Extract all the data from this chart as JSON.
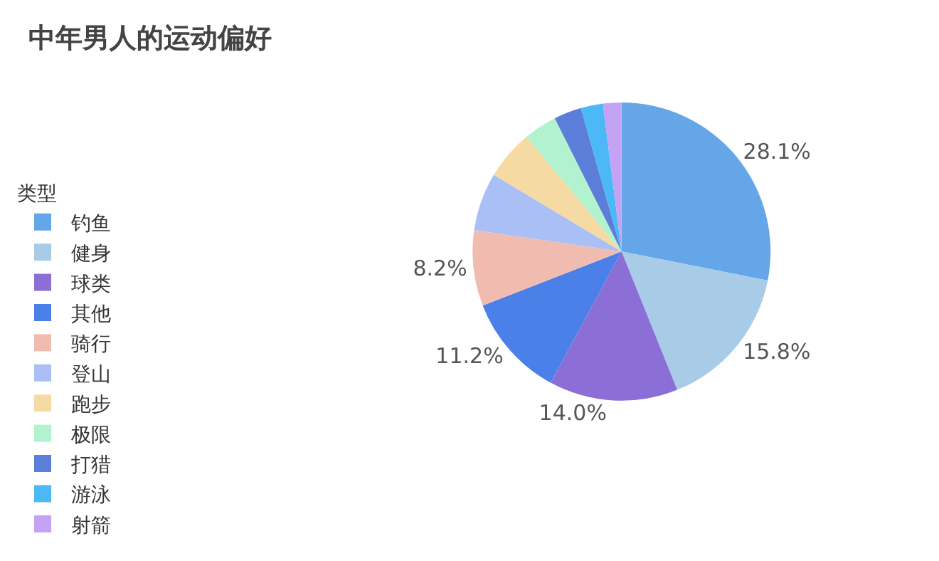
{
  "chart_data": {
    "type": "pie",
    "title": "中年男人的运动偏好",
    "legend_title": "类型",
    "legend": "left",
    "categories": [
      "钓鱼",
      "健身",
      "球类",
      "其他",
      "骑行",
      "登山",
      "跑步",
      "极限",
      "打猎",
      "游泳",
      "射箭"
    ],
    "values": [
      28.1,
      15.8,
      14.0,
      11.2,
      8.2,
      6.3,
      5.4,
      3.6,
      3.0,
      2.4,
      2.0
    ],
    "value_labels": [
      "28.1%",
      "15.8%",
      "14.0%",
      "11.2%",
      "8.2%",
      null,
      null,
      null,
      null,
      null,
      null
    ],
    "colors": [
      "#64a6e8",
      "#a8cbe8",
      "#8b6fd6",
      "#4a80e8",
      "#f1bcb0",
      "#a9bff5",
      "#f5dba3",
      "#b2f2cf",
      "#5b7fd9",
      "#4cb8f5",
      "#c4a2f4"
    ]
  }
}
